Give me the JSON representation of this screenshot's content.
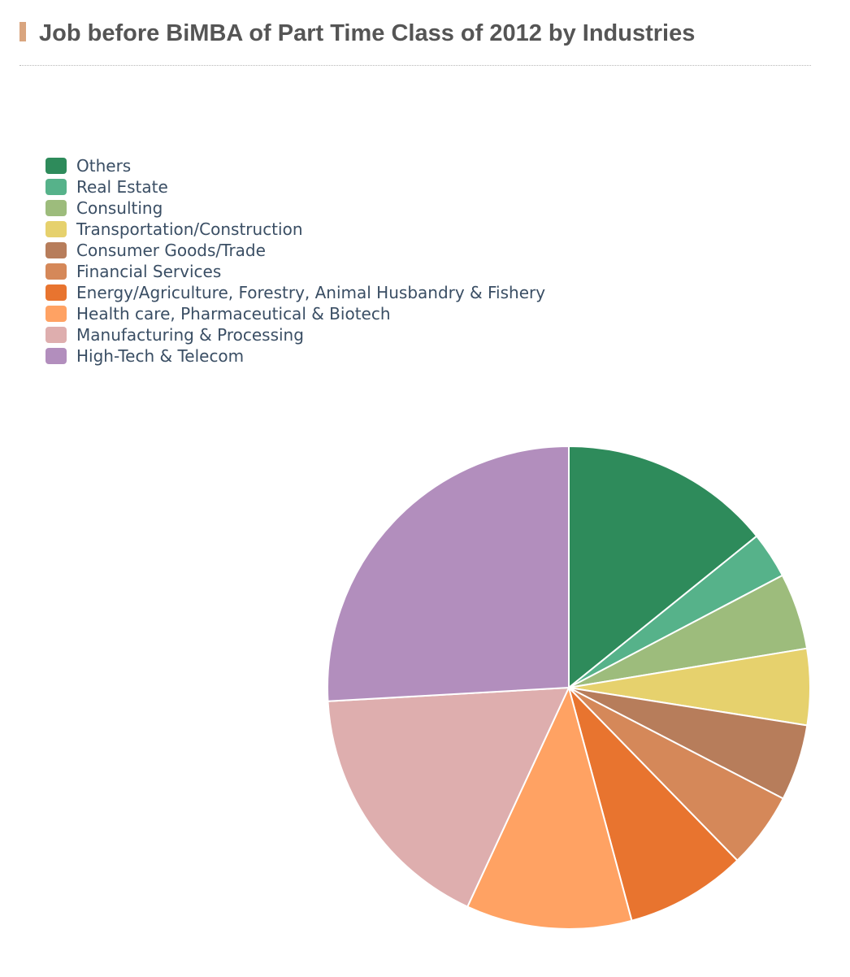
{
  "chart_data": {
    "type": "pie",
    "title": "Job before BiMBA of Part Time Class of 2012 by Industries",
    "legend_position": "top-left",
    "slices": [
      {
        "label": "Others",
        "value": 14.2,
        "color": "#2e8b5b"
      },
      {
        "label": "Real Estate",
        "value": 3.1,
        "color": "#56b28a"
      },
      {
        "label": "Consulting",
        "value": 5.1,
        "color": "#9dbc7c"
      },
      {
        "label": "Transportation/Construction",
        "value": 5.1,
        "color": "#e6d16d"
      },
      {
        "label": "Consumer Goods/Trade",
        "value": 5.1,
        "color": "#b77d5b"
      },
      {
        "label": "Financial Services",
        "value": 5.1,
        "color": "#d58859"
      },
      {
        "label": "Energy/Agriculture, Forestry, Animal Husbandry & Fishery",
        "value": 8.1,
        "color": "#e8742f"
      },
      {
        "label": "Health care, Pharmaceutical & Biotech",
        "value": 11.1,
        "color": "#ffa263"
      },
      {
        "label": "Manufacturing & Processing",
        "value": 17.2,
        "color": "#deaeae"
      },
      {
        "label": "High-Tech & Telecom",
        "value": 25.9,
        "color": "#b28ebd"
      }
    ]
  }
}
